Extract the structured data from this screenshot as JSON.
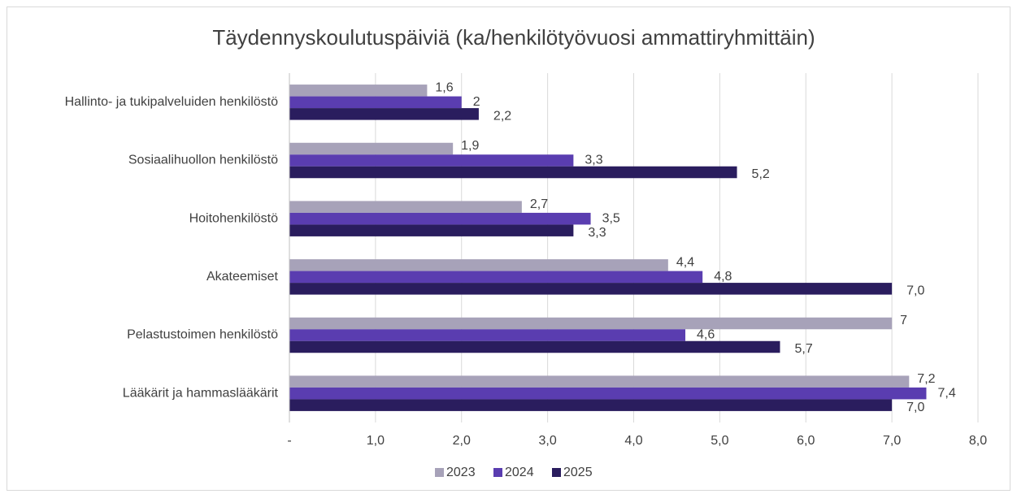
{
  "chart_data": {
    "type": "hbar",
    "title": "Täydennyskoulutuspäiviä (ka/henkilötyövuosi ammattiryhmittäin)",
    "categories": [
      "Hallinto- ja tukipalveluiden henkilöstö",
      "Sosiaalihuollon henkilöstö",
      "Hoitohenkilöstö",
      "Akateemiset",
      "Pelastustoimen henkilöstö",
      "Lääkärit ja hammaslääkärit"
    ],
    "series": [
      {
        "name": "2023",
        "color": "#a7a2b9",
        "values": [
          1.6,
          1.9,
          2.7,
          4.4,
          7,
          7.2
        ],
        "value_labels": [
          "1,6",
          "1,9",
          "2,7",
          "4,4",
          "7",
          "7,2"
        ]
      },
      {
        "name": "2024",
        "color": "#5a3db0",
        "values": [
          2,
          3.3,
          3.5,
          4.8,
          4.6,
          7.4
        ],
        "value_labels": [
          "2",
          "3,3",
          "3,5",
          "4,8",
          "4,6",
          "7,4"
        ]
      },
      {
        "name": "2025",
        "color": "#2a1d5e",
        "values": [
          2.2,
          5.2,
          3.3,
          7.0,
          5.7,
          7.0
        ],
        "value_labels": [
          "2,2",
          "5,2",
          "3,3",
          "7,0",
          "5,7",
          "7,0"
        ]
      }
    ],
    "xlim": [
      0,
      8
    ],
    "xticks": [
      {
        "value": 0,
        "label": "-"
      },
      {
        "value": 1,
        "label": "1,0"
      },
      {
        "value": 2,
        "label": "2,0"
      },
      {
        "value": 3,
        "label": "3,0"
      },
      {
        "value": 4,
        "label": "4,0"
      },
      {
        "value": 5,
        "label": "5,0"
      },
      {
        "value": 6,
        "label": "6,0"
      },
      {
        "value": 7,
        "label": "7,0"
      },
      {
        "value": 8,
        "label": "8,0"
      }
    ],
    "grid": true,
    "legend": "bottom"
  }
}
